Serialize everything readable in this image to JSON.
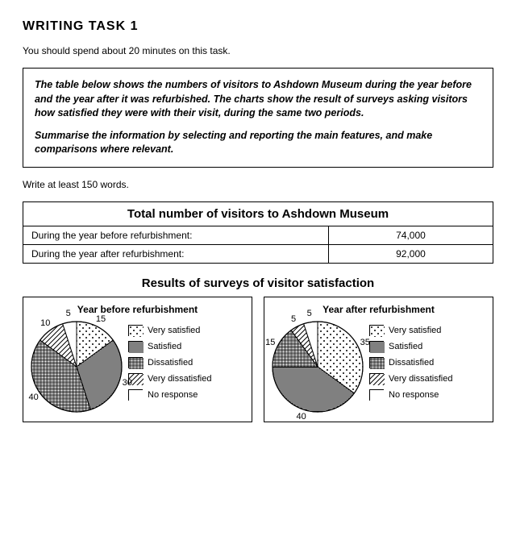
{
  "heading": "WRITING TASK 1",
  "intro": "You should spend about 20 minutes on this task.",
  "task_para1": "The table below shows the numbers of visitors to Ashdown Museum during the year before and the year after it was refurbished. The charts show the result of surveys asking visitors how satisfied they were with their visit, during the same two periods.",
  "task_para2": "Summarise the information by selecting and reporting the main features, and make comparisons where relevant.",
  "note": "Write at least 150 words.",
  "table": {
    "title": "Total number of visitors to Ashdown Museum",
    "rows": [
      {
        "label": "During the year before refurbishment:",
        "value": "74,000"
      },
      {
        "label": "During the year after refurbishment:",
        "value": "92,000"
      }
    ]
  },
  "survey_title": "Results of surveys of visitor satisfaction",
  "legend_labels": [
    "Very satisfied",
    "Satisfied",
    "Dissatisfied",
    "Very dissatisfied",
    "No response"
  ],
  "patterns": {
    "very_satisfied": "dots-sparse",
    "satisfied": "hatch-horizontal",
    "dissatisfied": "crosshatch",
    "very_dissatisfied": "diagonal",
    "no_response": "white"
  },
  "colors": {
    "stroke": "#000000",
    "background": "#ffffff"
  },
  "charts": [
    {
      "title": "Year before refurbishment",
      "radius": 56,
      "label_radius": 66,
      "slices": [
        {
          "label": "15",
          "value": 15,
          "pattern": "dots-sparse"
        },
        {
          "label": "30",
          "value": 30,
          "pattern": "hatch-horizontal"
        },
        {
          "label": "40",
          "value": 40,
          "pattern": "crosshatch"
        },
        {
          "label": "10",
          "value": 10,
          "pattern": "diagonal"
        },
        {
          "label": "5",
          "value": 5,
          "pattern": "white"
        }
      ]
    },
    {
      "title": "Year after refurbishment",
      "radius": 56,
      "label_radius": 66,
      "slices": [
        {
          "label": "35",
          "value": 35,
          "pattern": "dots-sparse"
        },
        {
          "label": "40",
          "value": 40,
          "pattern": "hatch-horizontal"
        },
        {
          "label": "15",
          "value": 15,
          "pattern": "crosshatch"
        },
        {
          "label": "5",
          "value": 5,
          "pattern": "diagonal"
        },
        {
          "label": "5",
          "value": 5,
          "pattern": "white"
        }
      ]
    }
  ]
}
